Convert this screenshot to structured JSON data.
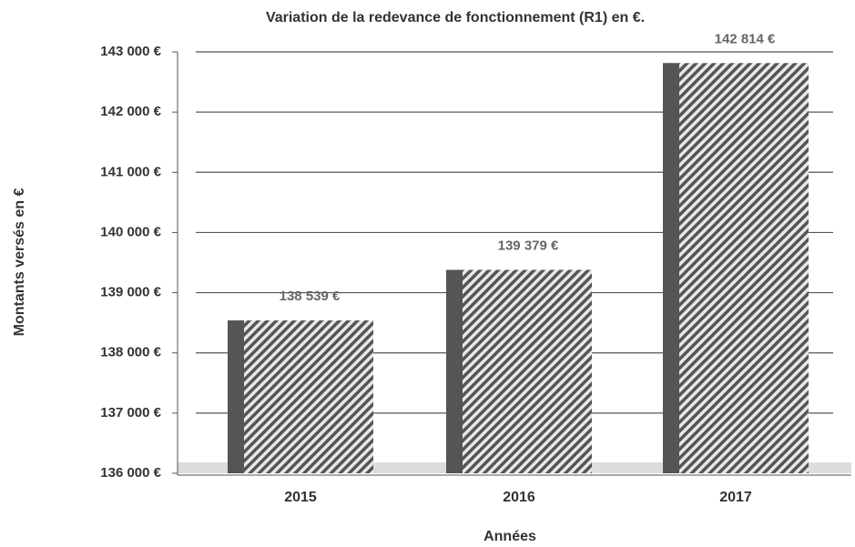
{
  "chart_data": {
    "type": "bar",
    "title": "Variation de la redevance de fonctionnement (R1) en €.",
    "x_label": "Années",
    "y_label": "Montants versés en €",
    "categories": [
      "2015",
      "2016",
      "2017"
    ],
    "values": [
      138539,
      139379,
      142814
    ],
    "value_labels": [
      "138 539 €",
      "139 379 €",
      "142 814 €"
    ],
    "color": "#555555",
    "ylim": [
      136000,
      143000
    ],
    "yticks": [
      {
        "value": 136000,
        "label": "136 000 €"
      },
      {
        "value": 137000,
        "label": "137 000 €"
      },
      {
        "value": 138000,
        "label": "138 000 €"
      },
      {
        "value": 139000,
        "label": "139 000 €"
      },
      {
        "value": 140000,
        "label": "140 000 €"
      },
      {
        "value": 141000,
        "label": "141 000 €"
      },
      {
        "value": 142000,
        "label": "142 000 €"
      },
      {
        "value": 143000,
        "label": "143 000 €"
      }
    ],
    "grid": true
  }
}
